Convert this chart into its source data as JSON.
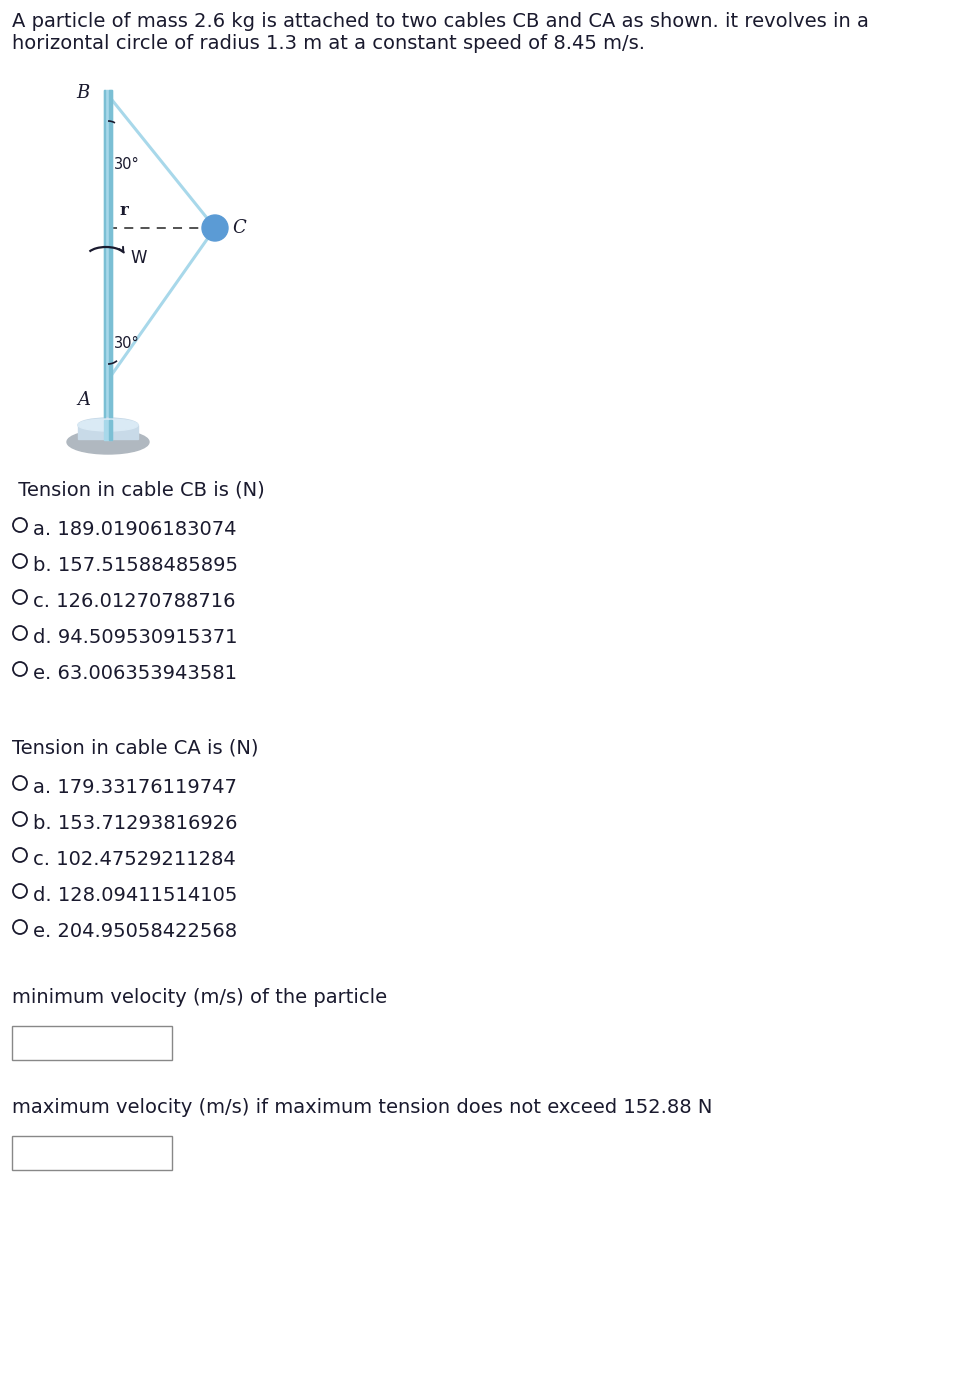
{
  "title_text": "A particle of mass 2.6 kg is attached to two cables CB and CA as shown. it revolves in a\nhorizontal circle of radius 1.3 m at a constant speed of 8.45 m/s.",
  "bg_color": "#ffffff",
  "text_color": "#1a1a2e",
  "section1_title": "Tension in cable CB is (N)",
  "cb_options": [
    "a. 189.01906183074",
    "b. 157.51588485895",
    "c. 126.01270788716",
    "d. 94.509530915371",
    "e. 63.006353943581"
  ],
  "section2_title": "Tension in cable CA is (N)",
  "ca_options": [
    "a. 179.33176119747",
    "b. 153.71293816926",
    "c. 102.47529211284",
    "d. 128.09411514105",
    "e. 204.95058422568"
  ],
  "min_vel_label": "minimum velocity (m/s) of the particle",
  "max_vel_label": "maximum velocity (m/s) if maximum tension does not exceed 152.88 N",
  "diagram": {
    "pole_color": "#a8d8ea",
    "pole_shade": "#7bbfd4",
    "pole_dark": "#5a9ab5",
    "cable_color": "#a8d8ea",
    "particle_color": "#5b9bd5",
    "particle_edge": "#4a85c0",
    "base_outer": "#b8b8b8",
    "base_mid": "#c8d8e8",
    "base_inner": "#d8e8f0",
    "base_top": "#e0eef5"
  }
}
